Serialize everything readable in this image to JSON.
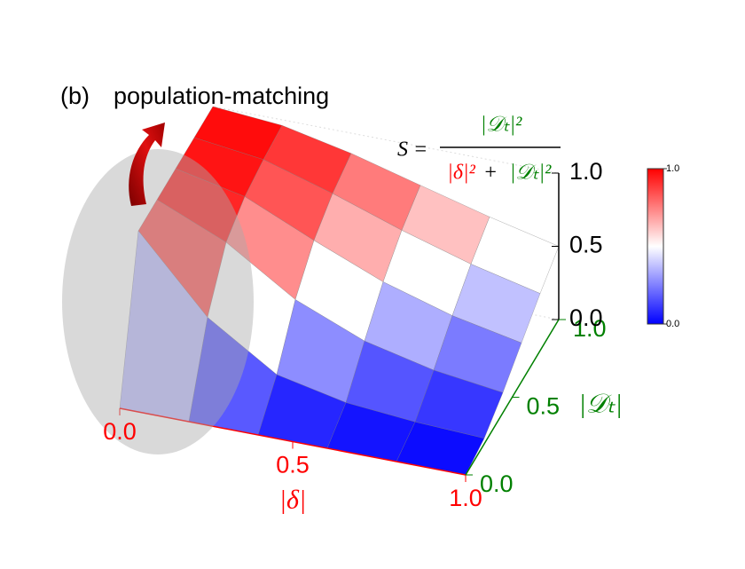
{
  "chart_data": {
    "type": "surface",
    "panel_label": "(b)",
    "title": "population-matching",
    "formula": {
      "lhs": "S =",
      "numerator": "|𝒟ₜ|²",
      "denominator_left": "|δ|²",
      "plus": "+",
      "denominator_right": "|𝒟ₜ|²"
    },
    "xlabel": "|δ|",
    "ylabel": "|𝒟ₜ|",
    "x": [
      0,
      0.2,
      0.4,
      0.6,
      0.8,
      1.0
    ],
    "y": [
      0,
      0.2,
      0.4,
      0.6,
      0.8,
      1.0
    ],
    "z": [
      [
        0,
        0,
        0,
        0,
        0,
        0
      ],
      [
        1,
        0.5,
        0.2,
        0.1,
        0.059,
        0.038
      ],
      [
        1,
        0.8,
        0.5,
        0.308,
        0.2,
        0.138
      ],
      [
        1,
        0.9,
        0.692,
        0.5,
        0.36,
        0.265
      ],
      [
        1,
        0.941,
        0.8,
        0.64,
        0.5,
        0.39
      ],
      [
        1,
        0.962,
        0.862,
        0.735,
        0.61,
        0.5
      ]
    ],
    "xlim": [
      0,
      1
    ],
    "ylim": [
      0,
      1
    ],
    "zlim": [
      0,
      1
    ],
    "xticks": [
      {
        "value": 0,
        "label": "0.0"
      },
      0.5,
      {
        "value": 1,
        "label": "1.0"
      }
    ],
    "yticks": [
      {
        "value": 0,
        "label": "0.0"
      },
      0.5,
      {
        "value": 1,
        "label": "1.0"
      }
    ],
    "zticks": [
      {
        "value": 0,
        "label": "0.0"
      },
      0.5,
      {
        "value": 1,
        "label": "1.0"
      }
    ],
    "colormap": [
      "#0000ff",
      "#ffffff",
      "#ff0000"
    ],
    "colorbar_ticks": [
      {
        "value": 0,
        "label": "0.0"
      },
      {
        "value": 1,
        "label": "1.0"
      }
    ],
    "x_color": "#ff0000",
    "y_color": "#008000"
  }
}
